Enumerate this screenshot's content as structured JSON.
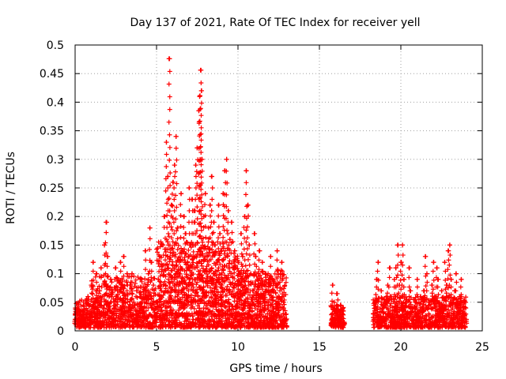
{
  "chart_data": {
    "type": "scatter",
    "title": "Day 137 of 2021, Rate Of TEC Index for receiver yell",
    "xlabel": "GPS time / hours",
    "ylabel": "ROTI / TECUs",
    "xlim": [
      0,
      25
    ],
    "ylim": [
      0,
      0.5
    ],
    "xticks": [
      0,
      5,
      10,
      15,
      20,
      25
    ],
    "yticks": [
      0,
      0.05,
      0.1,
      0.15,
      0.2,
      0.25,
      0.3,
      0.35,
      0.4,
      0.45,
      0.5
    ],
    "xtick_labels": [
      "0",
      "5",
      "10",
      "15",
      "20",
      "25"
    ],
    "ytick_labels": [
      "0",
      "0.05",
      "0.1",
      "0.15",
      "0.2",
      "0.25",
      "0.3",
      "0.35",
      "0.4",
      "0.45",
      "0.5"
    ],
    "grid": true,
    "marker": "+",
    "series": [
      {
        "name": "ROTI",
        "color": "#ff0000",
        "points": [
          [
            0.0,
            0.02
          ],
          [
            0.1,
            0.048
          ],
          [
            0.2,
            0.012
          ],
          [
            0.3,
            0.035
          ],
          [
            0.4,
            0.025
          ],
          [
            0.5,
            0.045
          ],
          [
            0.6,
            0.018
          ],
          [
            0.8,
            0.06
          ],
          [
            0.9,
            0.03
          ],
          [
            1.0,
            0.08
          ],
          [
            1.1,
            0.12
          ],
          [
            1.2,
            0.05
          ],
          [
            1.3,
            0.1
          ],
          [
            1.4,
            0.03
          ],
          [
            1.5,
            0.07
          ],
          [
            1.6,
            0.11
          ],
          [
            1.7,
            0.04
          ],
          [
            1.8,
            0.15
          ],
          [
            1.9,
            0.19
          ],
          [
            2.0,
            0.13
          ],
          [
            2.1,
            0.06
          ],
          [
            2.2,
            0.09
          ],
          [
            2.3,
            0.03
          ],
          [
            2.4,
            0.05
          ],
          [
            2.5,
            0.11
          ],
          [
            2.6,
            0.07
          ],
          [
            2.7,
            0.03
          ],
          [
            2.8,
            0.12
          ],
          [
            2.9,
            0.08
          ],
          [
            3.0,
            0.13
          ],
          [
            3.1,
            0.05
          ],
          [
            3.2,
            0.1
          ],
          [
            3.3,
            0.04
          ],
          [
            3.4,
            0.08
          ],
          [
            3.5,
            0.1
          ],
          [
            3.6,
            0.05
          ],
          [
            3.7,
            0.02
          ],
          [
            3.8,
            0.07
          ],
          [
            3.9,
            0.03
          ],
          [
            4.0,
            0.06
          ],
          [
            4.1,
            0.09
          ],
          [
            4.2,
            0.04
          ],
          [
            4.3,
            0.14
          ],
          [
            4.4,
            0.06
          ],
          [
            4.5,
            0.1
          ],
          [
            4.6,
            0.18
          ],
          [
            4.7,
            0.12
          ],
          [
            4.8,
            0.08
          ],
          [
            4.9,
            0.04
          ],
          [
            5.0,
            0.05
          ],
          [
            5.1,
            0.09
          ],
          [
            5.2,
            0.13
          ],
          [
            5.3,
            0.07
          ],
          [
            5.4,
            0.15
          ],
          [
            5.5,
            0.2
          ],
          [
            5.6,
            0.33
          ],
          [
            5.7,
            0.27
          ],
          [
            5.8,
            0.476
          ],
          [
            5.9,
            0.22
          ],
          [
            6.0,
            0.26
          ],
          [
            6.1,
            0.29
          ],
          [
            6.2,
            0.34
          ],
          [
            6.3,
            0.18
          ],
          [
            6.4,
            0.1
          ],
          [
            6.5,
            0.24
          ],
          [
            6.6,
            0.14
          ],
          [
            6.7,
            0.2
          ],
          [
            6.8,
            0.17
          ],
          [
            6.9,
            0.11
          ],
          [
            7.0,
            0.25
          ],
          [
            7.1,
            0.15
          ],
          [
            7.2,
            0.23
          ],
          [
            7.3,
            0.21
          ],
          [
            7.4,
            0.29
          ],
          [
            7.5,
            0.32
          ],
          [
            7.6,
            0.385
          ],
          [
            7.65,
            0.41
          ],
          [
            7.7,
            0.456
          ],
          [
            7.75,
            0.42
          ],
          [
            7.8,
            0.3
          ],
          [
            7.9,
            0.2
          ],
          [
            8.0,
            0.24
          ],
          [
            8.1,
            0.13
          ],
          [
            8.2,
            0.18
          ],
          [
            8.3,
            0.22
          ],
          [
            8.4,
            0.27
          ],
          [
            8.5,
            0.19
          ],
          [
            8.6,
            0.15
          ],
          [
            8.7,
            0.12
          ],
          [
            8.8,
            0.22
          ],
          [
            8.9,
            0.17
          ],
          [
            9.0,
            0.14
          ],
          [
            9.1,
            0.24
          ],
          [
            9.2,
            0.28
          ],
          [
            9.3,
            0.3
          ],
          [
            9.4,
            0.21
          ],
          [
            9.5,
            0.16
          ],
          [
            9.6,
            0.19
          ],
          [
            9.7,
            0.11
          ],
          [
            9.8,
            0.14
          ],
          [
            9.9,
            0.08
          ],
          [
            10.0,
            0.12
          ],
          [
            10.1,
            0.1
          ],
          [
            10.2,
            0.17
          ],
          [
            10.3,
            0.13
          ],
          [
            10.4,
            0.2
          ],
          [
            10.5,
            0.28
          ],
          [
            10.6,
            0.22
          ],
          [
            10.7,
            0.15
          ],
          [
            10.8,
            0.1
          ],
          [
            10.9,
            0.07
          ],
          [
            11.0,
            0.17
          ],
          [
            11.1,
            0.13
          ],
          [
            11.2,
            0.09
          ],
          [
            11.3,
            0.14
          ],
          [
            11.4,
            0.06
          ],
          [
            11.5,
            0.12
          ],
          [
            11.6,
            0.08
          ],
          [
            11.7,
            0.1
          ],
          [
            11.8,
            0.05
          ],
          [
            11.9,
            0.09
          ],
          [
            12.0,
            0.13
          ],
          [
            12.1,
            0.07
          ],
          [
            12.2,
            0.04
          ],
          [
            12.3,
            0.08
          ],
          [
            12.4,
            0.14
          ],
          [
            12.5,
            0.06
          ],
          [
            12.6,
            0.1
          ],
          [
            12.7,
            0.12
          ],
          [
            12.8,
            0.05
          ],
          [
            12.9,
            0.02
          ],
          [
            15.8,
            0.08
          ],
          [
            15.9,
            0.05
          ],
          [
            16.0,
            0.035
          ],
          [
            16.1,
            0.065
          ],
          [
            16.2,
            0.02
          ],
          [
            16.3,
            0.045
          ],
          [
            16.4,
            0.03
          ],
          [
            16.5,
            0.015
          ],
          [
            18.3,
            0.03
          ],
          [
            18.4,
            0.05
          ],
          [
            18.5,
            0.09
          ],
          [
            18.6,
            0.12
          ],
          [
            18.7,
            0.02
          ],
          [
            18.8,
            0.07
          ],
          [
            18.9,
            0.04
          ],
          [
            19.0,
            0.02
          ],
          [
            19.1,
            0.05
          ],
          [
            19.2,
            0.08
          ],
          [
            19.3,
            0.11
          ],
          [
            19.4,
            0.06
          ],
          [
            19.5,
            0.03
          ],
          [
            19.6,
            0.09
          ],
          [
            19.7,
            0.11
          ],
          [
            19.8,
            0.15
          ],
          [
            19.9,
            0.08
          ],
          [
            20.0,
            0.12
          ],
          [
            20.1,
            0.15
          ],
          [
            20.2,
            0.09
          ],
          [
            20.3,
            0.05
          ],
          [
            20.4,
            0.03
          ],
          [
            20.5,
            0.11
          ],
          [
            20.6,
            0.07
          ],
          [
            20.7,
            0.04
          ],
          [
            20.8,
            0.02
          ],
          [
            20.9,
            0.05
          ],
          [
            21.0,
            0.09
          ],
          [
            21.1,
            0.03
          ],
          [
            21.2,
            0.06
          ],
          [
            21.3,
            0.04
          ],
          [
            21.4,
            0.07
          ],
          [
            21.5,
            0.13
          ],
          [
            21.6,
            0.1
          ],
          [
            21.7,
            0.05
          ],
          [
            21.8,
            0.02
          ],
          [
            21.9,
            0.08
          ],
          [
            22.0,
            0.12
          ],
          [
            22.1,
            0.06
          ],
          [
            22.2,
            0.11
          ],
          [
            22.3,
            0.09
          ],
          [
            22.4,
            0.04
          ],
          [
            22.5,
            0.07
          ],
          [
            22.6,
            0.03
          ],
          [
            22.7,
            0.12
          ],
          [
            22.8,
            0.08
          ],
          [
            22.9,
            0.14
          ],
          [
            23.0,
            0.15
          ],
          [
            23.1,
            0.09
          ],
          [
            23.2,
            0.05
          ],
          [
            23.3,
            0.07
          ],
          [
            23.4,
            0.1
          ],
          [
            23.5,
            0.04
          ],
          [
            23.6,
            0.06
          ],
          [
            23.7,
            0.09
          ],
          [
            23.8,
            0.03
          ],
          [
            23.9,
            0.05
          ],
          [
            24.0,
            0.02
          ]
        ]
      }
    ],
    "dense_bands": [
      {
        "x0": 0.0,
        "x1": 1.0,
        "ymin": 0.0,
        "ymax": 0.05,
        "count": 140
      },
      {
        "x0": 1.0,
        "x1": 5.0,
        "ymin": 0.0,
        "ymax": 0.09,
        "count": 520
      },
      {
        "x0": 5.0,
        "x1": 10.0,
        "ymin": 0.0,
        "ymax": 0.15,
        "count": 820
      },
      {
        "x0": 10.0,
        "x1": 13.0,
        "ymin": 0.0,
        "ymax": 0.1,
        "count": 460
      },
      {
        "x0": 15.7,
        "x1": 16.5,
        "ymin": 0.0,
        "ymax": 0.04,
        "count": 110
      },
      {
        "x0": 18.3,
        "x1": 24.0,
        "ymin": 0.0,
        "ymax": 0.055,
        "count": 720
      }
    ]
  }
}
